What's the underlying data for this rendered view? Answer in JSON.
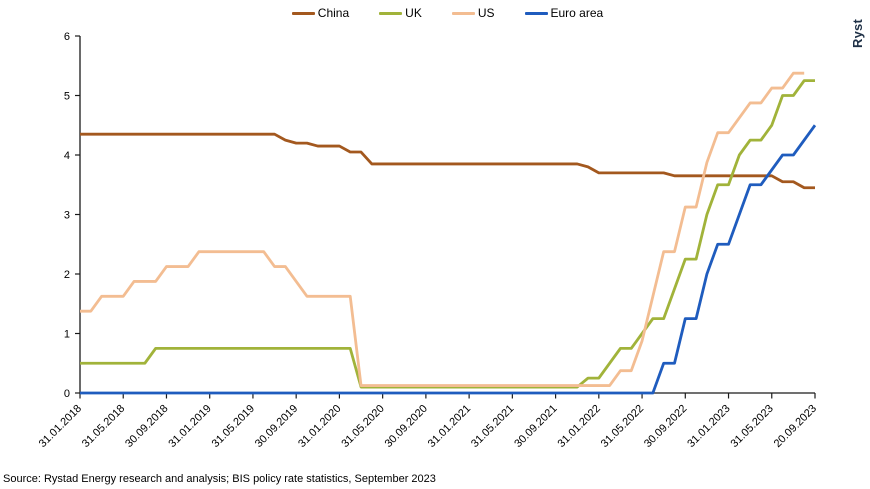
{
  "logo": {
    "text": "Ryst"
  },
  "source": "Source: Rystad Energy research and analysis; BIS policy rate statistics, September 2023",
  "chart_data": {
    "type": "line",
    "title": "",
    "xlabel": "",
    "ylabel": "",
    "ylim": [
      0,
      6
    ],
    "y_ticks": [
      0,
      1,
      2,
      3,
      4,
      5,
      6
    ],
    "grid": false,
    "legend_position": "top-center",
    "months_total": 69,
    "x_start_label": "31.01.2018",
    "x_end_label": "20.09.2023",
    "x_tick_month_indices": [
      0,
      4,
      8,
      12,
      16,
      20,
      24,
      28,
      32,
      36,
      40,
      44,
      48,
      52,
      56,
      60,
      64,
      68
    ],
    "x_tick_labels": [
      "31.01.2018",
      "31.05.2018",
      "30.09.2018",
      "31.01.2019",
      "31.05.2019",
      "30.09.2019",
      "31.01.2020",
      "31.05.2020",
      "30.09.2020",
      "31.01.2021",
      "31.05.2021",
      "30.09.2021",
      "31.01.2022",
      "31.05.2022",
      "30.09.2022",
      "31.01.2023",
      "31.05.2023",
      "20.09.2023"
    ],
    "series": [
      {
        "name": "China",
        "color": "#A3581E",
        "values": [
          4.35,
          4.35,
          4.35,
          4.35,
          4.35,
          4.35,
          4.35,
          4.35,
          4.35,
          4.35,
          4.35,
          4.35,
          4.35,
          4.35,
          4.35,
          4.35,
          4.35,
          4.35,
          4.35,
          4.25,
          4.2,
          4.2,
          4.15,
          4.15,
          4.15,
          4.05,
          4.05,
          3.85,
          3.85,
          3.85,
          3.85,
          3.85,
          3.85,
          3.85,
          3.85,
          3.85,
          3.85,
          3.85,
          3.85,
          3.85,
          3.85,
          3.85,
          3.85,
          3.85,
          3.85,
          3.85,
          3.85,
          3.8,
          3.7,
          3.7,
          3.7,
          3.7,
          3.7,
          3.7,
          3.7,
          3.65,
          3.65,
          3.65,
          3.65,
          3.65,
          3.65,
          3.65,
          3.65,
          3.65,
          3.65,
          3.55,
          3.55,
          3.45,
          3.45
        ]
      },
      {
        "name": "UK",
        "color": "#A1B33A",
        "values": [
          0.5,
          0.5,
          0.5,
          0.5,
          0.5,
          0.5,
          0.5,
          0.75,
          0.75,
          0.75,
          0.75,
          0.75,
          0.75,
          0.75,
          0.75,
          0.75,
          0.75,
          0.75,
          0.75,
          0.75,
          0.75,
          0.75,
          0.75,
          0.75,
          0.75,
          0.75,
          0.1,
          0.1,
          0.1,
          0.1,
          0.1,
          0.1,
          0.1,
          0.1,
          0.1,
          0.1,
          0.1,
          0.1,
          0.1,
          0.1,
          0.1,
          0.1,
          0.1,
          0.1,
          0.1,
          0.1,
          0.1,
          0.25,
          0.25,
          0.5,
          0.75,
          0.75,
          1.0,
          1.25,
          1.25,
          1.75,
          2.25,
          2.25,
          3.0,
          3.5,
          3.5,
          4.0,
          4.25,
          4.25,
          4.5,
          5.0,
          5.0,
          5.25,
          5.25
        ]
      },
      {
        "name": "US",
        "color": "#F3BD92",
        "values": [
          1.375,
          1.375,
          1.625,
          1.625,
          1.625,
          1.875,
          1.875,
          1.875,
          2.125,
          2.125,
          2.125,
          2.375,
          2.375,
          2.375,
          2.375,
          2.375,
          2.375,
          2.375,
          2.125,
          2.125,
          1.875,
          1.625,
          1.625,
          1.625,
          1.625,
          1.625,
          0.125,
          0.125,
          0.125,
          0.125,
          0.125,
          0.125,
          0.125,
          0.125,
          0.125,
          0.125,
          0.125,
          0.125,
          0.125,
          0.125,
          0.125,
          0.125,
          0.125,
          0.125,
          0.125,
          0.125,
          0.125,
          0.125,
          0.125,
          0.125,
          0.375,
          0.375,
          0.875,
          1.625,
          2.375,
          2.375,
          3.125,
          3.125,
          3.875,
          4.375,
          4.375,
          4.625,
          4.875,
          4.875,
          5.125,
          5.125,
          5.375,
          5.375,
          null
        ]
      },
      {
        "name": "Euro area",
        "color": "#1F5CBE",
        "values": [
          0,
          0,
          0,
          0,
          0,
          0,
          0,
          0,
          0,
          0,
          0,
          0,
          0,
          0,
          0,
          0,
          0,
          0,
          0,
          0,
          0,
          0,
          0,
          0,
          0,
          0,
          0,
          0,
          0,
          0,
          0,
          0,
          0,
          0,
          0,
          0,
          0,
          0,
          0,
          0,
          0,
          0,
          0,
          0,
          0,
          0,
          0,
          0,
          0,
          0,
          0,
          0,
          0,
          0,
          0.5,
          0.5,
          1.25,
          1.25,
          2.0,
          2.5,
          2.5,
          3.0,
          3.5,
          3.5,
          3.75,
          4.0,
          4.0,
          4.25,
          4.5
        ]
      }
    ]
  }
}
